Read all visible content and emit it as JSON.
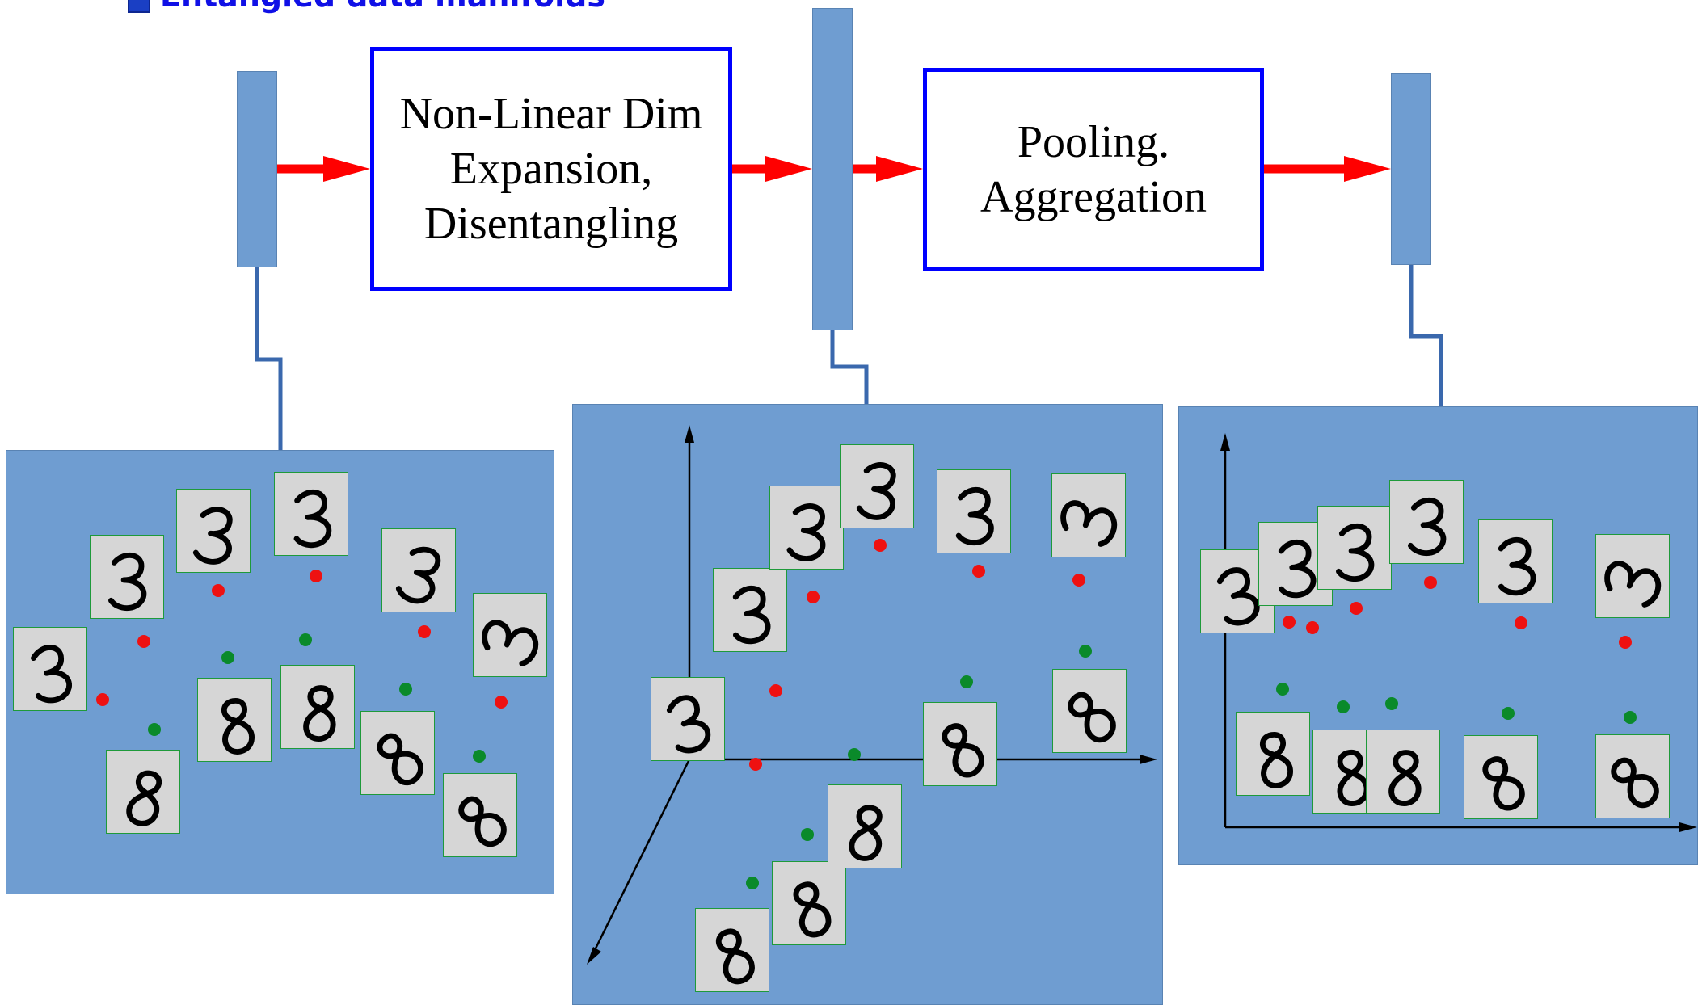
{
  "header": {
    "title": "Entangled data manifolds"
  },
  "blocks": {
    "expansion": [
      "Non-Linear Dim",
      "Expansion,",
      "Disentangling"
    ],
    "pooling": [
      "Pooling.",
      "Aggregation"
    ]
  },
  "colors": {
    "panel": "#6f9dd1",
    "arrow": "#ff0000",
    "box_border": "#0000ff",
    "class3_dot": "#ee1111",
    "class8_dot": "#0a8a2a",
    "connector": "#3a68ad"
  },
  "legend_glyphs": {
    "class_a": "3",
    "class_b": "8"
  }
}
